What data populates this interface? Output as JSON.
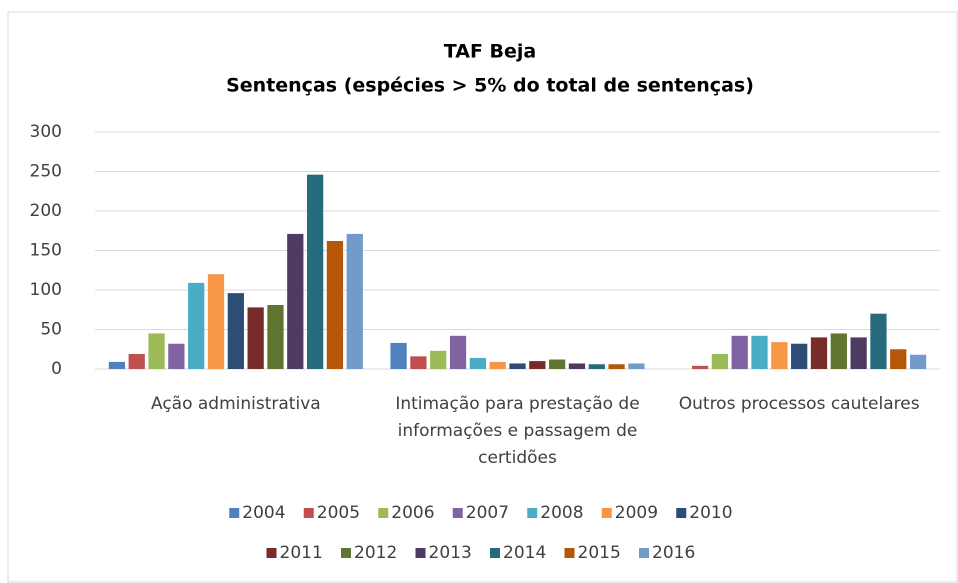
{
  "chart_data": {
    "type": "bar",
    "title": "TAF Beja",
    "subtitle": "Sentenças (espécies > 5% do total de sentenças)",
    "categories": [
      "Ação administrativa",
      "Intimação para prestação de informações e passagem de certidões",
      "Outros processos cautelares"
    ],
    "series": [
      {
        "name": "2004",
        "color": "#4f81bd",
        "values": [
          9,
          33,
          0
        ]
      },
      {
        "name": "2005",
        "color": "#c0504d",
        "values": [
          19,
          16,
          4
        ]
      },
      {
        "name": "2006",
        "color": "#9bbb59",
        "values": [
          45,
          23,
          19
        ]
      },
      {
        "name": "2007",
        "color": "#8064a2",
        "values": [
          32,
          42,
          42
        ]
      },
      {
        "name": "2008",
        "color": "#4bacc6",
        "values": [
          109,
          14,
          42
        ]
      },
      {
        "name": "2009",
        "color": "#f79646",
        "values": [
          120,
          9,
          34
        ]
      },
      {
        "name": "2010",
        "color": "#2c4d75",
        "values": [
          96,
          7,
          32
        ]
      },
      {
        "name": "2011",
        "color": "#772c2a",
        "values": [
          78,
          10,
          40
        ]
      },
      {
        "name": "2012",
        "color": "#5f7530",
        "values": [
          81,
          12,
          45
        ]
      },
      {
        "name": "2013",
        "color": "#4d3b62",
        "values": [
          171,
          7,
          40
        ]
      },
      {
        "name": "2014",
        "color": "#276a7c",
        "values": [
          246,
          6,
          70
        ]
      },
      {
        "name": "2015",
        "color": "#b65708",
        "values": [
          162,
          6,
          25
        ]
      },
      {
        "name": "2016",
        "color": "#729aca",
        "values": [
          171,
          7,
          18
        ]
      }
    ],
    "ylim": [
      0,
      300
    ],
    "yticks": [
      0,
      50,
      100,
      150,
      200,
      250,
      300
    ],
    "grid": true
  }
}
